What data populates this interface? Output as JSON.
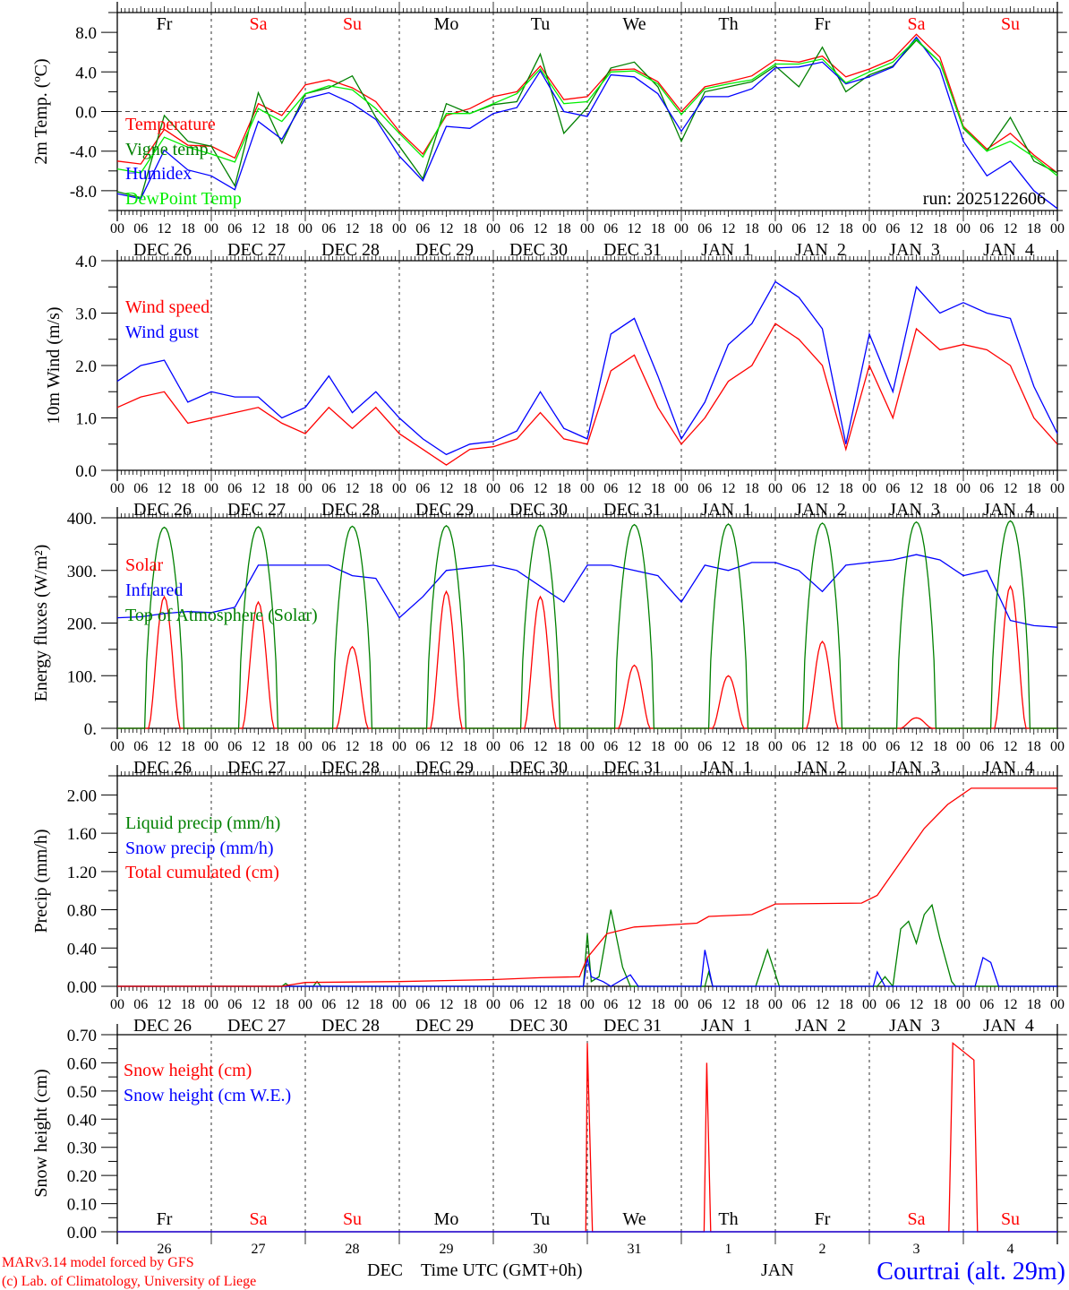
{
  "colors": {
    "red": "#ff0000",
    "green": "#008000",
    "blue": "#0000ff",
    "lime": "#00ee00",
    "black": "#000000"
  },
  "x_axis": {
    "hour_labels": [
      "00",
      "06",
      "12",
      "18"
    ],
    "final_hour_label": "00",
    "date_labels": [
      "DEC 26",
      "DEC 27",
      "DEC 28",
      "DEC 29",
      "DEC 30",
      "DEC 31",
      "JAN  1",
      "JAN  2",
      "JAN  3",
      "JAN  4"
    ],
    "weekdays": [
      "Fr",
      "Sa",
      "Su",
      "Mo",
      "Tu",
      "We",
      "Th",
      "Fr",
      "Sa",
      "Su"
    ],
    "weekend_flags": [
      false,
      true,
      true,
      false,
      false,
      false,
      false,
      false,
      true,
      true
    ],
    "day_numbers": [
      "26",
      "27",
      "28",
      "29",
      "30",
      "31",
      "1",
      "2",
      "3",
      "4"
    ],
    "month_left": "DEC",
    "month_right": "JAN",
    "title": "Time UTC (GMT+0h)"
  },
  "footer": {
    "model": "MARv3.14 model forced by GFS",
    "credit": "(c) Lab. of Climatology, University of Liege",
    "station": "Courtrai (alt. 29m)"
  },
  "chart_data": [
    {
      "type": "line",
      "id": "temp",
      "ylabel": "2m Temp. (ºC)",
      "ylim": [
        -10,
        10
      ],
      "yticks": [
        "8.0",
        "4.0",
        "0.0",
        "-4.0",
        "-8.0"
      ],
      "ytick_values": [
        8,
        4,
        0,
        -4,
        -8
      ],
      "run_label": "run: 2025122606",
      "x_step_hours": 6,
      "series": [
        {
          "name": "Temperature",
          "color": "#ff0000",
          "values": [
            -5,
            -5.3,
            -1.8,
            -3.4,
            -3.5,
            -4.7,
            0.8,
            -0.4,
            2.7,
            3.2,
            2.4,
            1.0,
            -2.0,
            -4.3,
            -0.4,
            0.3,
            1.5,
            2.0,
            4.6,
            1.2,
            1.5,
            4.2,
            4.3,
            3.0,
            0.0,
            2.5,
            3.0,
            3.6,
            5.2,
            5.0,
            5.6,
            3.5,
            4.3,
            5.3,
            7.8,
            5.5,
            -1.5,
            -3.8,
            -2.2,
            -4.4,
            -6.2
          ]
        },
        {
          "name": "Vigne temp",
          "color": "#008000",
          "values": [
            -8.1,
            -8.7,
            -0.4,
            -3.0,
            -3.5,
            -7.5,
            1.9,
            -3.2,
            1.8,
            2.4,
            3.6,
            -0.6,
            -3.5,
            -6.8,
            0.8,
            -0.2,
            0.7,
            1.0,
            5.8,
            -2.2,
            0.4,
            4.4,
            5.0,
            2.5,
            -3.0,
            2.0,
            2.5,
            3.0,
            4.6,
            2.5,
            6.5,
            2.0,
            3.7,
            4.6,
            7.2,
            5.0,
            -1.7,
            -4.0,
            -0.6,
            -5.0,
            -6.2
          ]
        },
        {
          "name": "Humidex",
          "color": "#0000ff",
          "values": [
            -8.3,
            -8.8,
            -3.9,
            -5.9,
            -6.5,
            -7.9,
            -1.0,
            -2.8,
            1.3,
            1.9,
            0.8,
            -0.8,
            -4.5,
            -7.0,
            -1.5,
            -1.7,
            -0.2,
            0.4,
            4.1,
            0.0,
            -0.5,
            3.7,
            3.5,
            1.8,
            -2.0,
            1.5,
            1.5,
            2.3,
            4.4,
            4.5,
            5.0,
            2.8,
            3.5,
            4.5,
            7.5,
            4.3,
            -3.0,
            -6.5,
            -5.0,
            -8.0,
            -9.8
          ]
        },
        {
          "name": "DewPoint Temp",
          "color": "#00ee00",
          "values": [
            -5.8,
            -6.2,
            -2.6,
            -3.6,
            -4.3,
            -5.1,
            0.3,
            -1.0,
            1.8,
            2.6,
            2.2,
            0.3,
            -2.2,
            -4.6,
            -0.2,
            -0.2,
            0.8,
            1.8,
            4.3,
            0.8,
            1.0,
            4.0,
            4.1,
            2.8,
            -0.3,
            2.3,
            2.8,
            3.2,
            4.8,
            4.8,
            5.3,
            2.9,
            4.0,
            5.0,
            7.3,
            5.0,
            -1.6,
            -4.0,
            -3.0,
            -4.6,
            -6.5
          ]
        }
      ]
    },
    {
      "type": "line",
      "id": "wind",
      "ylabel": "10m Wind (m/s)",
      "ylim": [
        0,
        4
      ],
      "yticks": [
        "4.0",
        "3.0",
        "2.0",
        "1.0",
        "0.0"
      ],
      "ytick_values": [
        4,
        3,
        2,
        1,
        0
      ],
      "x_step_hours": 6,
      "series": [
        {
          "name": "Wind speed",
          "color": "#ff0000",
          "values": [
            1.2,
            1.4,
            1.5,
            0.9,
            1.0,
            1.1,
            1.2,
            0.9,
            0.7,
            1.2,
            0.8,
            1.2,
            0.7,
            0.4,
            0.1,
            0.4,
            0.45,
            0.6,
            1.1,
            0.6,
            0.5,
            1.9,
            2.2,
            1.2,
            0.5,
            1.0,
            1.7,
            2.0,
            2.8,
            2.5,
            2.0,
            0.4,
            2.0,
            1.0,
            2.7,
            2.3,
            2.4,
            2.3,
            2.0,
            1.0,
            0.5
          ]
        },
        {
          "name": "Wind gust",
          "color": "#0000ff",
          "values": [
            1.7,
            2.0,
            2.1,
            1.3,
            1.5,
            1.4,
            1.4,
            1.0,
            1.2,
            1.8,
            1.1,
            1.5,
            1.0,
            0.6,
            0.3,
            0.5,
            0.55,
            0.75,
            1.5,
            0.8,
            0.6,
            2.6,
            2.9,
            1.8,
            0.6,
            1.3,
            2.4,
            2.8,
            3.6,
            3.3,
            2.7,
            0.5,
            2.6,
            1.5,
            3.5,
            3.0,
            3.2,
            3.0,
            2.9,
            1.6,
            0.7
          ]
        }
      ]
    },
    {
      "type": "line",
      "id": "energy",
      "ylabel": "Energy fluxes (W/m²)",
      "ylim": [
        0,
        400
      ],
      "yticks": [
        "400.",
        "300.",
        "200.",
        "100.",
        "0."
      ],
      "ytick_values": [
        400,
        300,
        200,
        100,
        0
      ],
      "x_step_hours": 6,
      "series": [
        {
          "name": "Solar",
          "color": "#ff0000",
          "daily_peaks": [
            250,
            240,
            155,
            260,
            250,
            120,
            100,
            165,
            20,
            270
          ]
        },
        {
          "name": "Infrared",
          "color": "#0000ff",
          "values": [
            210,
            212,
            218,
            222,
            220,
            230,
            310,
            310,
            310,
            310,
            290,
            285,
            210,
            250,
            300,
            305,
            310,
            300,
            270,
            240,
            310,
            310,
            300,
            290,
            240,
            310,
            300,
            315,
            315,
            300,
            260,
            310,
            315,
            320,
            330,
            320,
            290,
            300,
            205,
            195,
            192
          ]
        },
        {
          "name": "Top of Atmosphere (Solar)",
          "color": "#008000",
          "daily_peaks": [
            382,
            383,
            384,
            385,
            386,
            387,
            388,
            390,
            392,
            394
          ]
        }
      ]
    },
    {
      "type": "line",
      "id": "precip",
      "ylabel": "Precip (mm/h)",
      "ylim": [
        0,
        2.2
      ],
      "yticks": [
        "2.00",
        "1.60",
        "1.20",
        "0.80",
        "0.40",
        "0.00"
      ],
      "ytick_values": [
        2,
        1.6,
        1.2,
        0.8,
        0.4,
        0
      ],
      "series": [
        {
          "name": "Liquid precip (mm/h)",
          "color": "#008000",
          "points": [
            [
              0,
              0
            ],
            [
              42,
              0
            ],
            [
              43,
              0.03
            ],
            [
              44,
              0
            ],
            [
              50,
              0
            ],
            [
              51,
              0.05
            ],
            [
              52,
              0
            ],
            [
              119,
              0
            ],
            [
              120,
              0.55
            ],
            [
              121,
              0.05
            ],
            [
              123,
              0.1
            ],
            [
              126,
              0.8
            ],
            [
              129,
              0.2
            ],
            [
              131,
              0
            ],
            [
              150,
              0
            ],
            [
              151,
              0.15
            ],
            [
              152,
              0
            ],
            [
              163,
              0
            ],
            [
              166,
              0.38
            ],
            [
              169,
              0
            ],
            [
              194,
              0
            ],
            [
              196,
              0.1
            ],
            [
              198,
              0
            ],
            [
              200,
              0.6
            ],
            [
              202,
              0.68
            ],
            [
              204,
              0.45
            ],
            [
              206,
              0.75
            ],
            [
              208,
              0.85
            ],
            [
              210,
              0.5
            ],
            [
              213,
              0.05
            ],
            [
              214,
              0
            ],
            [
              240,
              0
            ]
          ]
        },
        {
          "name": "Snow precip (mm/h)",
          "color": "#0000ff",
          "points": [
            [
              0,
              0
            ],
            [
              119,
              0
            ],
            [
              120,
              0.3
            ],
            [
              121,
              0.1
            ],
            [
              124,
              0.05
            ],
            [
              126,
              0
            ],
            [
              131,
              0.12
            ],
            [
              133,
              0
            ],
            [
              149,
              0
            ],
            [
              150,
              0.38
            ],
            [
              152,
              0
            ],
            [
              193,
              0
            ],
            [
              194,
              0.15
            ],
            [
              196,
              0
            ],
            [
              219,
              0
            ],
            [
              221,
              0.3
            ],
            [
              223,
              0.25
            ],
            [
              225,
              0
            ],
            [
              240,
              0
            ]
          ]
        },
        {
          "name": "Total cumulated (cm)",
          "color": "#ff0000",
          "points": [
            [
              0,
              0
            ],
            [
              42,
              0
            ],
            [
              48,
              0.04
            ],
            [
              72,
              0.05
            ],
            [
              96,
              0.07
            ],
            [
              108,
              0.09
            ],
            [
              118,
              0.1
            ],
            [
              120,
              0.3
            ],
            [
              125,
              0.55
            ],
            [
              132,
              0.62
            ],
            [
              144,
              0.65
            ],
            [
              148,
              0.66
            ],
            [
              151,
              0.73
            ],
            [
              162,
              0.75
            ],
            [
              168,
              0.86
            ],
            [
              190,
              0.87
            ],
            [
              194,
              0.95
            ],
            [
              200,
              1.3
            ],
            [
              206,
              1.65
            ],
            [
              212,
              1.9
            ],
            [
              218,
              2.07
            ],
            [
              240,
              2.07
            ]
          ]
        }
      ]
    },
    {
      "type": "line",
      "id": "snow",
      "ylabel": "Snow height (cm)",
      "ylim": [
        0,
        0.7
      ],
      "yticks": [
        "0.70",
        "0.60",
        "0.50",
        "0.40",
        "0.30",
        "0.20",
        "0.10",
        "0.00"
      ],
      "ytick_values": [
        0.7,
        0.6,
        0.5,
        0.4,
        0.3,
        0.2,
        0.1,
        0
      ],
      "series": [
        {
          "name": "Snow height (cm)",
          "color": "#ff0000",
          "points": [
            [
              0,
              0
            ],
            [
              119.6,
              0
            ],
            [
              120,
              0.67
            ],
            [
              121.3,
              0
            ],
            [
              149.8,
              0
            ],
            [
              150.5,
              0.6
            ],
            [
              151.5,
              0
            ],
            [
              212.3,
              0
            ],
            [
              213.3,
              0.67
            ],
            [
              218.7,
              0.61
            ],
            [
              219.6,
              0
            ],
            [
              240,
              0
            ]
          ]
        },
        {
          "name": "Snow height (cm W.E.)",
          "color": "#0000ff",
          "points": [
            [
              0,
              0
            ],
            [
              240,
              0
            ]
          ]
        }
      ]
    }
  ]
}
